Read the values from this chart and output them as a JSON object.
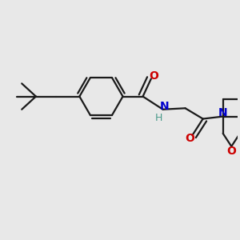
{
  "bg_color": "#e8e8e8",
  "line_color": "#1a1a1a",
  "bond_width": 1.6,
  "font_size_label": 10,
  "fig_size": [
    3.0,
    3.0
  ],
  "dpi": 100,
  "O_color": "#cc0000",
  "N_color": "#0000cc",
  "H_color": "#4a9a8a",
  "xlim": [
    0,
    10
  ],
  "ylim": [
    0,
    10
  ]
}
